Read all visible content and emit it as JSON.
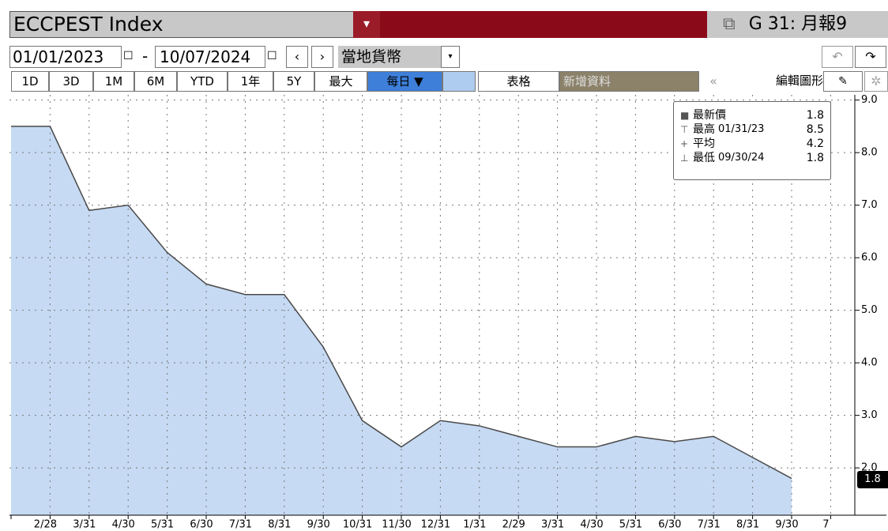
{
  "header": {
    "title": "ECCPEST Index",
    "function": "G 31: 月報9"
  },
  "date_row": {
    "start": "01/01/2023",
    "separator": "-",
    "end": "10/07/2024",
    "currency": "當地貨幣"
  },
  "buttons": [
    "1D",
    "3D",
    "1M",
    "6M",
    "YTD",
    "1年",
    "5Y",
    "最大",
    "每日 ▼",
    "表格",
    "新增資料",
    "編輯圖形"
  ],
  "chart_data": {
    "type": "area",
    "categories": [
      null,
      "2/28",
      "3/31",
      "4/30",
      "5/31",
      "6/30",
      "7/31",
      "8/31",
      "9/30",
      "10/31",
      "11/30",
      "12/31",
      "1/31",
      "2/29",
      "3/31",
      "4/30",
      "5/31",
      "6/30",
      "7/31",
      "8/31",
      "9/30",
      "7"
    ],
    "series": [
      {
        "name": "ECCPEST Index",
        "color": "#c6daf3",
        "line_color": "#4a4a4a",
        "values": [
          8.5,
          8.5,
          6.9,
          7.0,
          6.1,
          5.5,
          5.3,
          5.3,
          4.3,
          2.9,
          2.4,
          2.9,
          2.8,
          2.6,
          2.4,
          2.4,
          2.6,
          2.5,
          2.6,
          2.2,
          1.8,
          null
        ]
      }
    ],
    "ylim": [
      1.1,
      9.1
    ],
    "yticks": [
      {
        "value": 2,
        "label": "2.0"
      },
      {
        "value": 3,
        "label": "3.0"
      },
      {
        "value": 4,
        "label": "4.0"
      },
      {
        "value": 5,
        "label": "5.0"
      },
      {
        "value": 6,
        "label": "6.0"
      },
      {
        "value": 7,
        "label": "7.0"
      },
      {
        "value": 8,
        "label": "8.0"
      },
      {
        "value": 9,
        "label": "9.0"
      }
    ],
    "grid": true,
    "legend": [
      {
        "label": "最新價",
        "value": 1.8
      },
      {
        "label": "最高",
        "date": "01/31/23",
        "value": 8.5
      },
      {
        "label": "平均",
        "value": 4.2
      },
      {
        "label": "最低",
        "date": "09/30/24",
        "value": 1.8
      }
    ]
  }
}
